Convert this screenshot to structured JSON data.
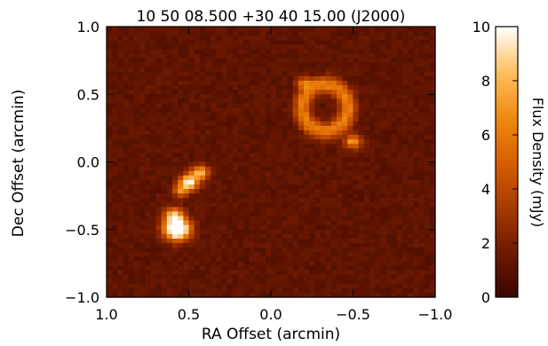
{
  "chart_data": {
    "type": "heatmap",
    "title": "10 50 08.500 +30 40 15.00 (J2000)",
    "xlabel": "RA Offset (arcmin)",
    "ylabel": "Dec Offset (arcmin)",
    "xlim": [
      1.0,
      -1.0
    ],
    "ylim": [
      -1.0,
      1.0
    ],
    "xticks": [
      "1.0",
      "0.5",
      "0.0",
      "−0.5",
      "−1.0"
    ],
    "xtick_values": [
      1.0,
      0.5,
      0.0,
      -0.5,
      -1.0
    ],
    "yticks": [
      "1.0",
      "0.5",
      "0.0",
      "−0.5",
      "−1.0"
    ],
    "ytick_values": [
      1.0,
      0.5,
      0.0,
      -0.5,
      -1.0
    ],
    "colorbar": {
      "label": "Flux Density (mJy)",
      "range": [
        0,
        10
      ],
      "ticks": [
        "10",
        "8",
        "6",
        "4",
        "2",
        "0"
      ],
      "tick_values": [
        10,
        8,
        6,
        4,
        2,
        0
      ]
    },
    "colormap": [
      "#3a0500",
      "#6e1a00",
      "#a83a00",
      "#d86000",
      "#f08a10",
      "#ffc060",
      "#ffffff"
    ],
    "background_level": 1.2,
    "sources": [
      {
        "kind": "blob",
        "ra": 0.57,
        "dec": -0.5,
        "sigma": 0.055,
        "peak": 12
      },
      {
        "kind": "blob",
        "ra": 0.59,
        "dec": -0.4,
        "sigma": 0.04,
        "peak": 7
      },
      {
        "kind": "blob",
        "ra": 0.5,
        "dec": -0.15,
        "sigma": 0.04,
        "peak": 9
      },
      {
        "kind": "blob",
        "ra": 0.43,
        "dec": -0.08,
        "sigma": 0.035,
        "peak": 7
      },
      {
        "kind": "blob",
        "ra": 0.55,
        "dec": -0.22,
        "sigma": 0.03,
        "peak": 5
      },
      {
        "kind": "ring",
        "ra": -0.33,
        "dec": 0.4,
        "rx": 0.14,
        "ry": 0.17,
        "width": 0.035,
        "peak": 5
      },
      {
        "kind": "blob",
        "ra": -0.5,
        "dec": 0.15,
        "sigma": 0.035,
        "peak": 6
      },
      {
        "kind": "blob",
        "ra": -0.2,
        "dec": 0.58,
        "sigma": 0.03,
        "peak": 4
      }
    ]
  }
}
